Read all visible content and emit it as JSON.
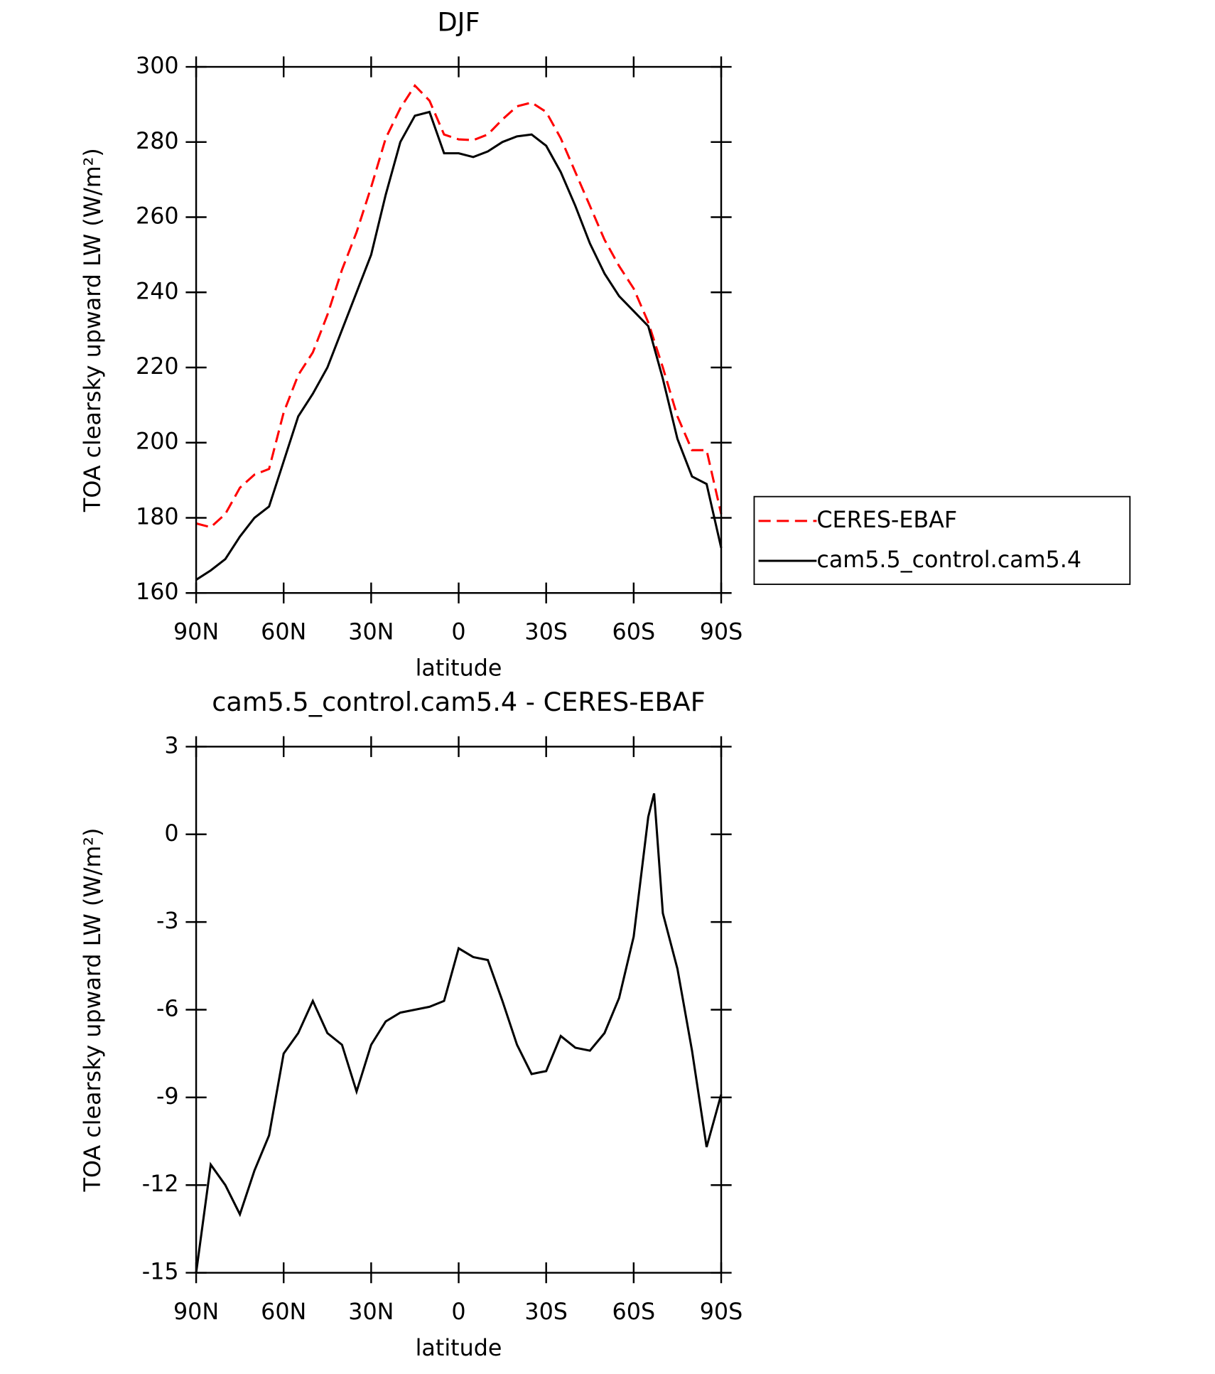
{
  "chart_data": [
    {
      "type": "line",
      "title": "DJF",
      "x_label": "latitude",
      "y_label": "TOA clearsky upward LW (W/m²)",
      "xlim": [
        90,
        -90
      ],
      "ylim": [
        160,
        300
      ],
      "xticks": [
        {
          "value": 90,
          "label": "90N"
        },
        {
          "value": 60,
          "label": "60N"
        },
        {
          "value": 30,
          "label": "30N"
        },
        0,
        {
          "value": -30,
          "label": "30S"
        },
        {
          "value": -60,
          "label": "60S"
        },
        {
          "value": -90,
          "label": "90S"
        }
      ],
      "yticks": [
        160,
        180,
        200,
        220,
        240,
        260,
        280,
        300
      ],
      "x": [
        90,
        85,
        80,
        75,
        70,
        65,
        60,
        55,
        50,
        45,
        40,
        35,
        30,
        25,
        20,
        15,
        10,
        5,
        0,
        -5,
        -10,
        -15,
        -20,
        -25,
        -30,
        -35,
        -40,
        -45,
        -50,
        -55,
        -60,
        -65,
        -70,
        -75,
        -80,
        -85,
        -90
      ],
      "legend": "right",
      "series": [
        {
          "name": "CERES-EBAF",
          "color": "#ff0000",
          "dashed": true,
          "values": [
            178.5,
            177.5,
            181,
            188,
            191.5,
            193,
            208,
            218,
            224,
            234,
            246,
            256,
            268,
            281,
            289,
            295,
            291,
            282,
            280.7,
            280.5,
            282,
            286,
            289.5,
            290.5,
            288,
            281,
            272,
            263,
            254,
            247,
            241,
            232,
            220,
            207,
            198,
            198,
            181
          ]
        },
        {
          "name": "cam5.5_control.cam5.4",
          "color": "#000000",
          "dashed": false,
          "values": [
            163.5,
            166,
            169,
            175,
            180,
            183,
            195,
            207,
            213,
            220,
            230,
            240,
            250,
            266,
            280,
            287,
            288,
            277,
            277,
            276,
            277.5,
            280,
            281.5,
            282,
            279,
            272,
            263,
            253,
            245,
            239,
            235,
            231,
            217,
            201,
            191,
            189,
            172
          ]
        }
      ]
    },
    {
      "type": "line",
      "title": "cam5.5_control.cam5.4 - CERES-EBAF",
      "x_label": "latitude",
      "y_label": "TOA clearsky upward LW (W/m²)",
      "xlim": [
        90,
        -90
      ],
      "ylim": [
        -15,
        3
      ],
      "xticks": [
        {
          "value": 90,
          "label": "90N"
        },
        {
          "value": 60,
          "label": "60N"
        },
        {
          "value": 30,
          "label": "30N"
        },
        0,
        {
          "value": -30,
          "label": "30S"
        },
        {
          "value": -60,
          "label": "60S"
        },
        {
          "value": -90,
          "label": "90S"
        }
      ],
      "yticks": [
        -15,
        -12,
        -9,
        -6,
        -3,
        0,
        3
      ],
      "x": [
        90,
        85,
        80,
        75,
        70,
        65,
        60,
        55,
        50,
        45,
        40,
        35,
        30,
        25,
        20,
        15,
        10,
        5,
        0,
        -5,
        -10,
        -15,
        -20,
        -25,
        -30,
        -35,
        -40,
        -45,
        -50,
        -55,
        -60,
        -65,
        -67,
        -70,
        -75,
        -80,
        -85,
        -90
      ],
      "series": [
        {
          "color": "#000000",
          "dashed": false,
          "values": [
            -15,
            -11.3,
            -12,
            -13,
            -11.5,
            -10.3,
            -7.5,
            -6.8,
            -5.7,
            -6.8,
            -7.2,
            -8.8,
            -7.2,
            -6.4,
            -6.1,
            -6.0,
            -5.9,
            -5.7,
            -3.9,
            -4.2,
            -4.3,
            -5.7,
            -7.2,
            -8.2,
            -8.1,
            -6.9,
            -7.3,
            -7.4,
            -6.8,
            -5.6,
            -3.5,
            0.6,
            1.4,
            -2.7,
            -4.6,
            -7.4,
            -10.7,
            -8.9
          ]
        }
      ]
    }
  ]
}
